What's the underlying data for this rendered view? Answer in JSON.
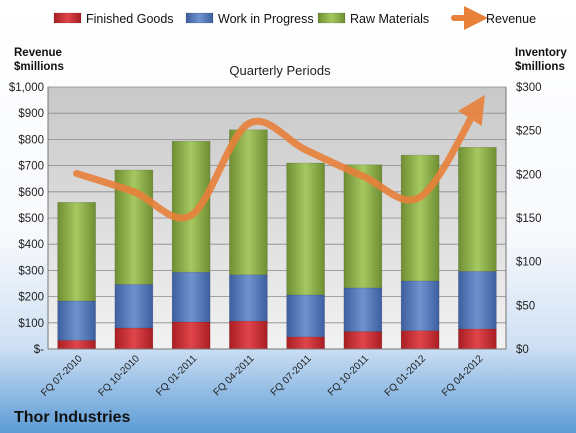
{
  "company": "Thor Industries",
  "chart_data": {
    "type": "bar",
    "stacked": true,
    "title": "Quarterly Periods",
    "left_axis_label": [
      "Revenue",
      "$millions"
    ],
    "right_axis_label": [
      "Inventory",
      "$millions"
    ],
    "categories": [
      "FQ 07-2010",
      "FQ 10-2010",
      "FQ 01-2011",
      "FQ 04-2011",
      "FQ 07-2011",
      "FQ 10-2011",
      "FQ 01-2012",
      "FQ 04-2012"
    ],
    "left_axis": {
      "min": 0,
      "max": 1000,
      "step": 100,
      "tick_labels": [
        "$-",
        "$100",
        "$200",
        "$300",
        "$400",
        "$500",
        "$600",
        "$700",
        "$800",
        "$900",
        "$1,000"
      ]
    },
    "right_axis": {
      "min": 0,
      "max": 300,
      "step": 50,
      "tick_labels": [
        "$0",
        "$50",
        "$100",
        "$150",
        "$200",
        "$250",
        "$300"
      ]
    },
    "grid": true,
    "legend_position": "top",
    "series": [
      {
        "name": "Finished Goods",
        "color": "#c0282d",
        "axis": "right",
        "kind": "bar",
        "values": [
          10,
          24,
          31,
          32,
          14,
          20,
          21,
          23
        ]
      },
      {
        "name": "Work in Progress",
        "color": "#4f73b8",
        "axis": "right",
        "kind": "bar",
        "values": [
          45,
          50,
          57,
          53,
          48,
          50,
          57,
          66
        ]
      },
      {
        "name": "Raw Materials",
        "color": "#8fb04a",
        "axis": "right",
        "kind": "bar",
        "values": [
          113,
          131,
          150,
          166,
          151,
          141,
          144,
          142
        ]
      },
      {
        "name": "Revenue",
        "color": "#e8803a",
        "axis": "left",
        "kind": "line",
        "values": [
          670,
          600,
          510,
          860,
          760,
          660,
          580,
          925
        ]
      }
    ]
  }
}
